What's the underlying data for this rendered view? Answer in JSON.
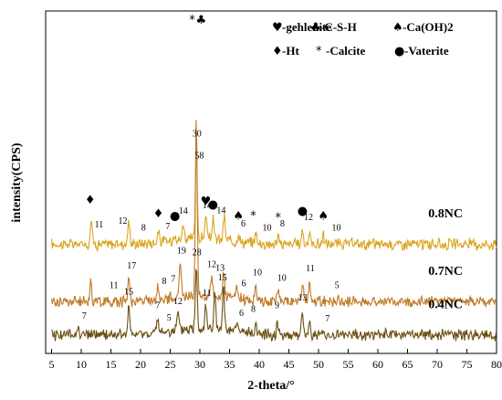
{
  "chart_data": {
    "type": "line",
    "xlabel": "2-theta/°",
    "ylabel": "intensity(CPS)",
    "xlim": [
      4,
      80
    ],
    "x_ticks": [
      5,
      10,
      15,
      20,
      25,
      30,
      35,
      40,
      45,
      50,
      55,
      60,
      65,
      70,
      75,
      80
    ],
    "grid": false,
    "legend": [
      {
        "symbol": "♥",
        "text": "-gehlenite"
      },
      {
        "symbol": "♣",
        "text": "-C-S-H"
      },
      {
        "symbol": "♠",
        "text": "-Ca(OH)2"
      },
      {
        "symbol": "♦",
        "text": "-Ht"
      },
      {
        "symbol": "*",
        "text": "-Calcite"
      },
      {
        "symbol": "●",
        "text": "-Vaterite"
      }
    ],
    "series": [
      {
        "name": "0.8NC",
        "color": "#d9a520",
        "baseline": 105,
        "peaks": [
          {
            "x": 11.7,
            "h": 28
          },
          {
            "x": 18.0,
            "h": 25
          },
          {
            "x": 23.0,
            "h": 12
          },
          {
            "x": 25.8,
            "h": 10
          },
          {
            "x": 27.2,
            "h": 18
          },
          {
            "x": 29.4,
            "h": 100
          },
          {
            "x": 31.0,
            "h": 25
          },
          {
            "x": 32.2,
            "h": 22
          },
          {
            "x": 34.1,
            "h": 25
          },
          {
            "x": 36.5,
            "h": 10
          },
          {
            "x": 39.4,
            "h": 12
          },
          {
            "x": 43.2,
            "h": 8
          },
          {
            "x": 47.3,
            "h": 15
          },
          {
            "x": 48.5,
            "h": 12
          },
          {
            "x": 50.8,
            "h": 10
          }
        ],
        "labels": [
          {
            "x": 11.5,
            "text": "♦",
            "kind": "sym"
          },
          {
            "x": 13.0,
            "text": "11",
            "kind": "num"
          },
          {
            "x": 17.0,
            "text": "12",
            "kind": "num"
          },
          {
            "x": 20.5,
            "text": "8",
            "kind": "num"
          },
          {
            "x": 23.0,
            "text": "♦",
            "kind": "sym"
          },
          {
            "x": 24.6,
            "text": "7",
            "kind": "num"
          },
          {
            "x": 25.8,
            "text": "●",
            "kind": "sym"
          },
          {
            "x": 27.2,
            "text": "14",
            "kind": "num"
          },
          {
            "x": 29.5,
            "text": "30",
            "kind": "num"
          },
          {
            "x": 31.0,
            "text": "♥",
            "kind": "sym"
          },
          {
            "x": 31.2,
            "text": "14",
            "kind": "num"
          },
          {
            "x": 32.2,
            "text": "●",
            "kind": "sym"
          },
          {
            "x": 33.6,
            "text": "14",
            "kind": "num"
          },
          {
            "x": 36.5,
            "text": "♠",
            "kind": "sym"
          },
          {
            "x": 37.3,
            "text": "6",
            "kind": "num"
          },
          {
            "x": 39.0,
            "text": "*",
            "kind": "sym"
          },
          {
            "x": 41.3,
            "text": "10",
            "kind": "num"
          },
          {
            "x": 43.2,
            "text": "*",
            "kind": "sym"
          },
          {
            "x": 43.9,
            "text": "8",
            "kind": "num"
          },
          {
            "x": 47.3,
            "text": "●",
            "kind": "sym"
          },
          {
            "x": 48.3,
            "text": "12",
            "kind": "num"
          },
          {
            "x": 50.8,
            "text": "♠",
            "kind": "sym"
          },
          {
            "x": 53.0,
            "text": "10",
            "kind": "num"
          }
        ]
      },
      {
        "name": "0.7NC",
        "color": "#c07a28",
        "baseline": 45,
        "peaks": [
          {
            "x": 11.6,
            "h": 22
          },
          {
            "x": 18.0,
            "h": 28
          },
          {
            "x": 23.0,
            "h": 14
          },
          {
            "x": 26.7,
            "h": 38
          },
          {
            "x": 29.4,
            "h": 185
          },
          {
            "x": 32.0,
            "h": 22
          },
          {
            "x": 34.0,
            "h": 28
          },
          {
            "x": 36.2,
            "h": 12
          },
          {
            "x": 39.4,
            "h": 15
          },
          {
            "x": 43.2,
            "h": 12
          },
          {
            "x": 47.3,
            "h": 20
          },
          {
            "x": 48.5,
            "h": 18
          }
        ],
        "labels": [
          {
            "x": 15.5,
            "text": "11",
            "kind": "num"
          },
          {
            "x": 18.5,
            "text": "17",
            "kind": "num"
          },
          {
            "x": 24.0,
            "text": "8",
            "kind": "num"
          },
          {
            "x": 25.5,
            "text": "7",
            "kind": "num"
          },
          {
            "x": 26.9,
            "text": "19",
            "kind": "num"
          },
          {
            "x": 29.9,
            "text": "58",
            "kind": "num"
          },
          {
            "x": 32.0,
            "text": "12",
            "kind": "num"
          },
          {
            "x": 33.4,
            "text": "13",
            "kind": "num"
          },
          {
            "x": 37.4,
            "text": "6",
            "kind": "num"
          },
          {
            "x": 39.7,
            "text": "10",
            "kind": "num"
          },
          {
            "x": 43.8,
            "text": "10",
            "kind": "num"
          },
          {
            "x": 48.6,
            "text": "11",
            "kind": "num"
          },
          {
            "x": 53.1,
            "text": "5",
            "kind": "num"
          }
        ]
      },
      {
        "name": "0.4NC",
        "color": "#6b4f12",
        "baseline": 10,
        "peaks": [
          {
            "x": 9.5,
            "h": 10
          },
          {
            "x": 18.0,
            "h": 28
          },
          {
            "x": 22.9,
            "h": 14
          },
          {
            "x": 26.3,
            "h": 18
          },
          {
            "x": 29.4,
            "h": 70
          },
          {
            "x": 31.0,
            "h": 28
          },
          {
            "x": 32.5,
            "h": 40
          },
          {
            "x": 34.0,
            "h": 45
          },
          {
            "x": 36.3,
            "h": 10
          },
          {
            "x": 39.4,
            "h": 12
          },
          {
            "x": 43.1,
            "h": 14
          },
          {
            "x": 47.3,
            "h": 22
          },
          {
            "x": 48.5,
            "h": 14
          }
        ],
        "labels": [
          {
            "x": 10.5,
            "text": "7",
            "kind": "num"
          },
          {
            "x": 18.0,
            "text": "15",
            "kind": "num"
          },
          {
            "x": 22.9,
            "text": "7",
            "kind": "num"
          },
          {
            "x": 24.8,
            "text": "5",
            "kind": "num"
          },
          {
            "x": 26.3,
            "text": "12",
            "kind": "num"
          },
          {
            "x": 29.5,
            "text": "28",
            "kind": "num"
          },
          {
            "x": 31.2,
            "text": "11",
            "kind": "num"
          },
          {
            "x": 33.8,
            "text": "15",
            "kind": "num"
          },
          {
            "x": 37.0,
            "text": "6",
            "kind": "num"
          },
          {
            "x": 39.0,
            "text": "8",
            "kind": "num"
          },
          {
            "x": 43.0,
            "text": "9",
            "kind": "num"
          },
          {
            "x": 47.3,
            "text": "13",
            "kind": "num"
          },
          {
            "x": 51.5,
            "text": "7",
            "kind": "num"
          }
        ]
      }
    ]
  }
}
